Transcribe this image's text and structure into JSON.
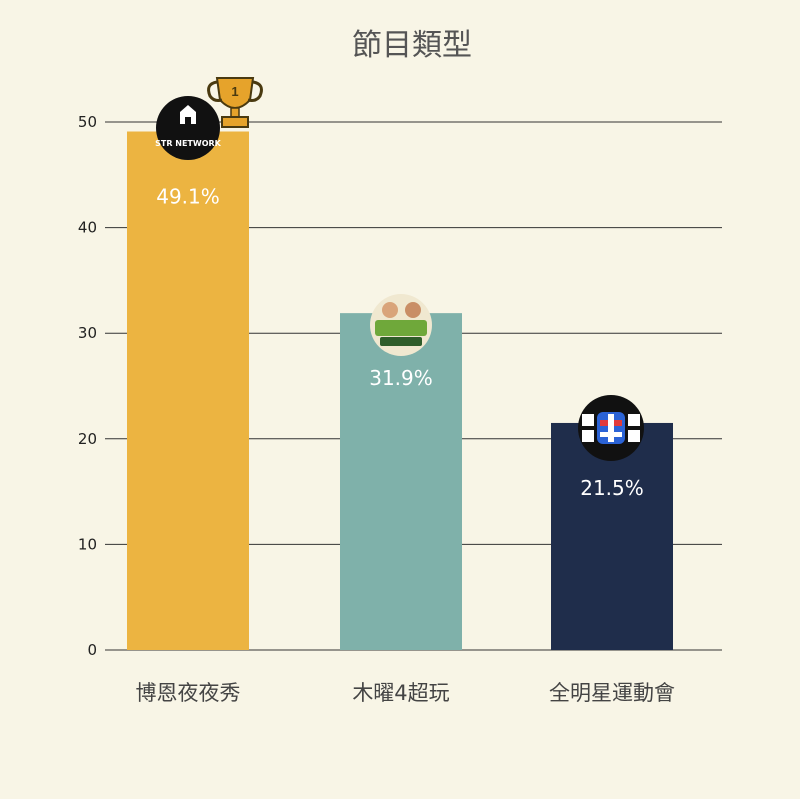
{
  "chart_data": {
    "type": "bar",
    "title": "節目類型",
    "categories": [
      "博恩夜夜秀",
      "木曜4超玩",
      "全明星運動會"
    ],
    "values": [
      49.1,
      31.9,
      21.5
    ],
    "value_labels": [
      "49.1%",
      "31.9%",
      "21.5%"
    ],
    "colors": [
      "#ecb441",
      "#7fb1aa",
      "#1f2d4b"
    ],
    "ylim": [
      0,
      50
    ],
    "yticks": [
      0,
      10,
      20,
      30,
      40,
      50
    ],
    "grid": true,
    "xlabel": "",
    "ylabel": ""
  },
  "logos": {
    "str_network": "STR NETWORK",
    "trophy_rank": "1"
  }
}
